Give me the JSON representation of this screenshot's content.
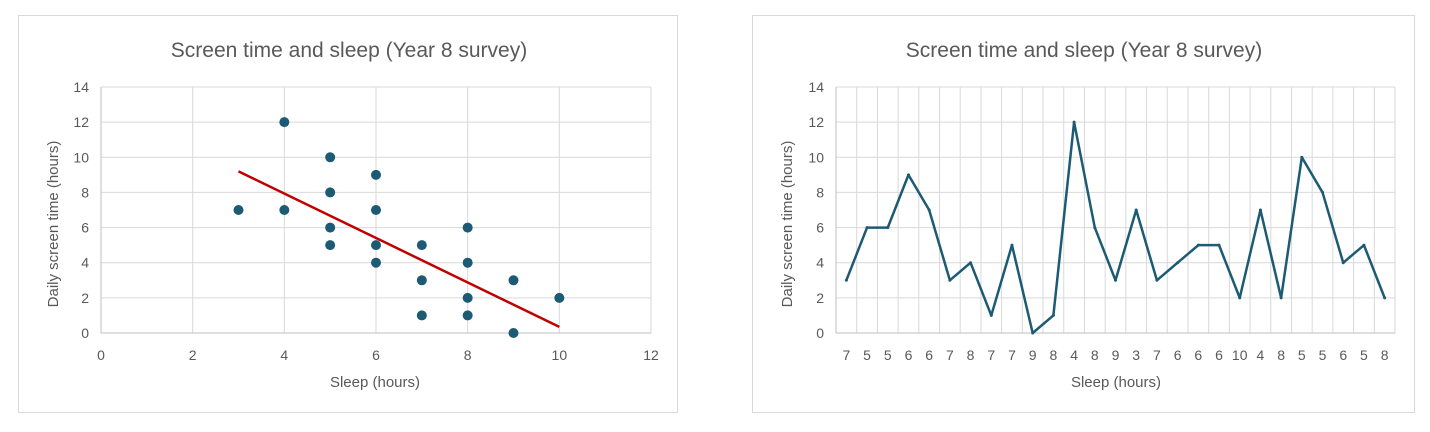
{
  "chart_data": [
    {
      "type": "scatter",
      "title": "Screen time and sleep (Year 8 survey)",
      "xlabel": "Sleep (hours)",
      "ylabel": "Daily screen time  (hours)",
      "xlim": [
        0,
        12
      ],
      "ylim": [
        0,
        14
      ],
      "xticks": [
        "0",
        "2",
        "4",
        "6",
        "8",
        "10",
        "12"
      ],
      "yticks": [
        "0",
        "2",
        "4",
        "6",
        "8",
        "10",
        "12",
        "14"
      ],
      "grid": "vertical and horizontal",
      "legend": "none",
      "series": [
        {
          "x": [
            3,
            4,
            4,
            5,
            5,
            5,
            5,
            6,
            6,
            6,
            6,
            7,
            7,
            7,
            8,
            8,
            8,
            8,
            9,
            9,
            10
          ],
          "y": [
            7,
            12,
            7,
            10,
            8,
            6,
            5,
            9,
            7,
            5,
            4,
            5,
            3,
            1,
            6,
            4,
            2,
            1,
            3,
            0,
            2
          ],
          "color": "#1d5a73"
        }
      ],
      "trendline": {
        "type": "linear",
        "x": [
          3,
          10
        ],
        "y": [
          9.2,
          0.35
        ],
        "color": "#c00000"
      }
    },
    {
      "type": "line",
      "title": "Screen time and sleep (Year 8 survey)",
      "xlabel": "Sleep (hours)",
      "ylabel": "Daily screen time  (hours)",
      "ylim": [
        0,
        14
      ],
      "yticks": [
        "0",
        "2",
        "4",
        "6",
        "8",
        "10",
        "12",
        "14"
      ],
      "grid": "vertical and horizontal",
      "legend": "none",
      "categories": [
        "7",
        "5",
        "5",
        "6",
        "6",
        "7",
        "8",
        "7",
        "7",
        "9",
        "8",
        "4",
        "8",
        "9",
        "3",
        "7",
        "6",
        "6",
        "6",
        "10",
        "4",
        "8",
        "5",
        "5",
        "6",
        "5",
        "8"
      ],
      "series": [
        {
          "values": [
            3,
            6,
            6,
            9,
            7,
            3,
            4,
            1,
            5,
            0,
            1,
            12,
            6,
            3,
            7,
            3,
            4,
            5,
            5,
            2,
            7,
            2,
            10,
            8,
            4,
            5,
            2
          ],
          "color": "#1d5a73"
        }
      ]
    }
  ]
}
